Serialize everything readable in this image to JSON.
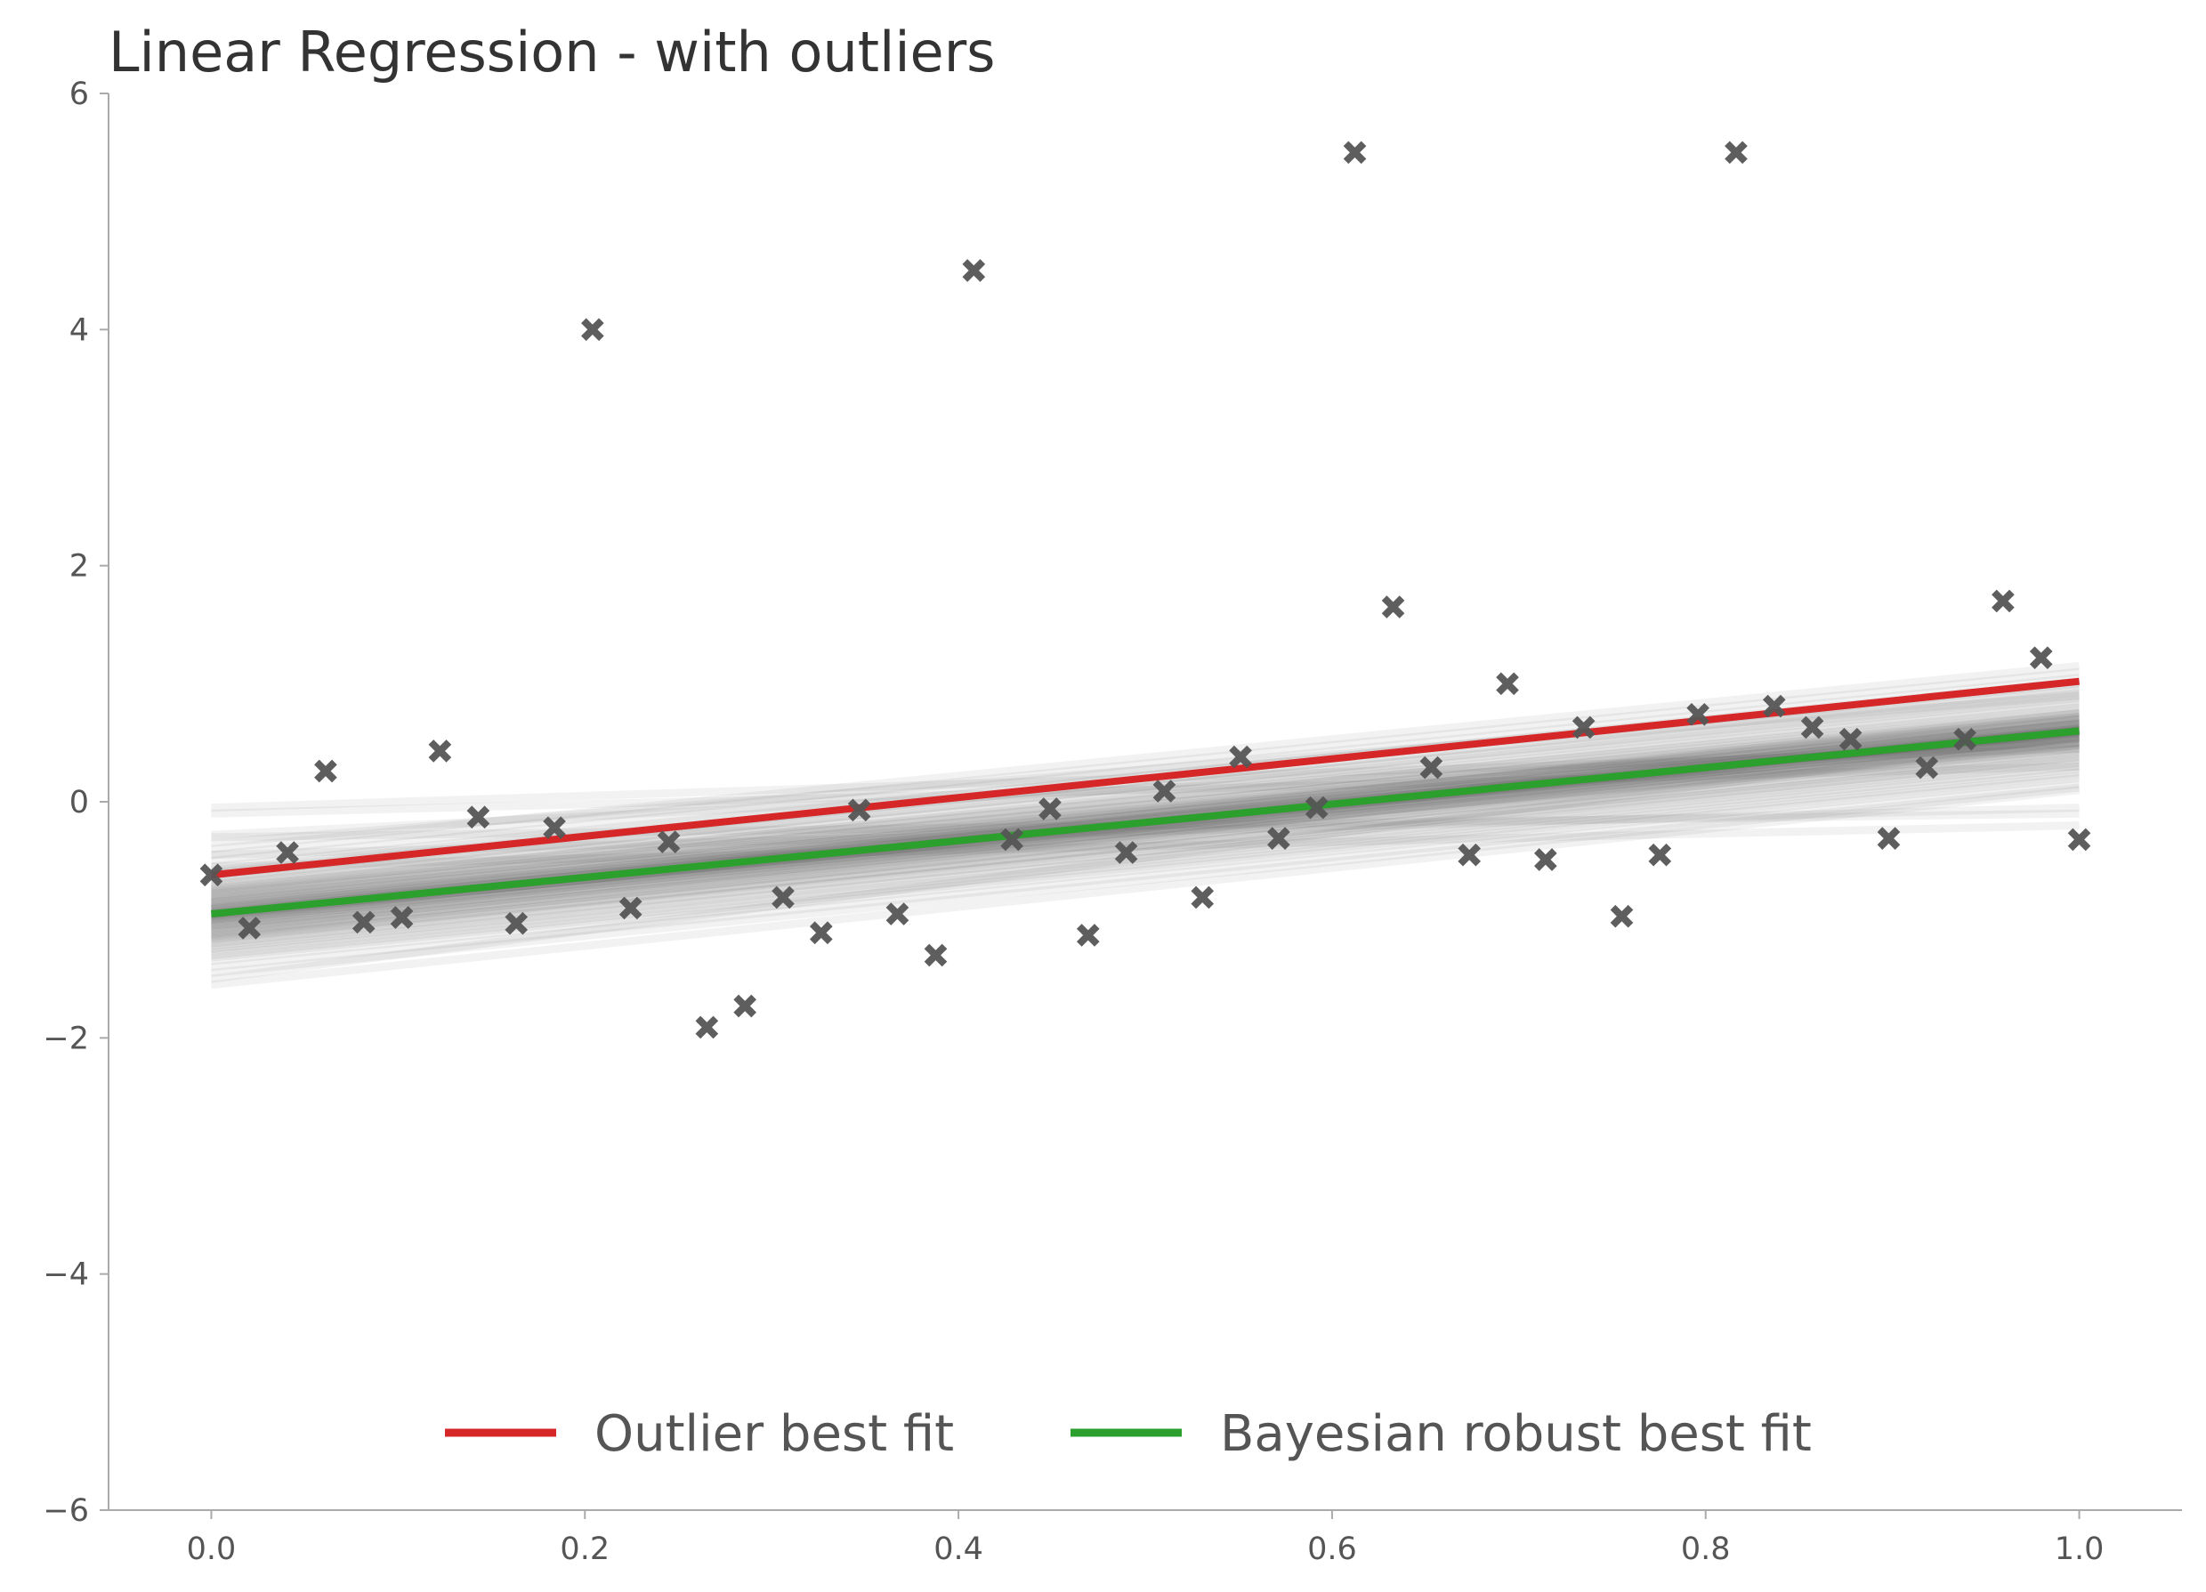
{
  "chart_data": {
    "type": "scatter",
    "title": "Linear Regression - with outliers",
    "xlabel": "",
    "ylabel": "",
    "xlim": [
      -0.055,
      1.055
    ],
    "ylim": [
      -6,
      6
    ],
    "x_ticks": [
      0.0,
      0.2,
      0.4,
      0.6,
      0.8,
      1.0
    ],
    "x_tick_labels": [
      "0.0",
      "0.2",
      "0.4",
      "0.6",
      "0.8",
      "1.0"
    ],
    "y_ticks": [
      -6,
      -4,
      -2,
      0,
      2,
      4,
      6
    ],
    "y_tick_labels": [
      "−6",
      "−4",
      "−2",
      "0",
      "2",
      "4",
      "6"
    ],
    "grid": false,
    "legend_position": "bottom-center",
    "points": {
      "marker": "x",
      "color": "#555555",
      "x": [
        0.0,
        0.0204,
        0.0408,
        0.0612,
        0.0816,
        0.102,
        0.1224,
        0.1429,
        0.1633,
        0.1837,
        0.2041,
        0.2245,
        0.2449,
        0.2653,
        0.2857,
        0.3061,
        0.3265,
        0.3469,
        0.3673,
        0.3878,
        0.4082,
        0.4286,
        0.449,
        0.4694,
        0.4898,
        0.5102,
        0.5306,
        0.551,
        0.5714,
        0.5918,
        0.6122,
        0.6327,
        0.6531,
        0.6735,
        0.6939,
        0.7143,
        0.7347,
        0.7551,
        0.7755,
        0.7959,
        0.8163,
        0.8367,
        0.8571,
        0.8776,
        0.898,
        0.9184,
        0.9388,
        0.9592,
        0.9796,
        1.0
      ],
      "y": [
        -0.62,
        -1.07,
        -0.43,
        0.26,
        -1.02,
        -0.98,
        0.43,
        -0.13,
        -1.03,
        -0.22,
        4.0,
        -0.9,
        -0.34,
        -1.91,
        -1.73,
        -0.81,
        -1.11,
        -0.07,
        -0.95,
        -1.3,
        4.5,
        -0.32,
        -0.06,
        -1.13,
        -0.43,
        0.09,
        -0.81,
        0.38,
        -0.31,
        -0.05,
        5.5,
        1.65,
        0.29,
        -0.45,
        1.0,
        -0.49,
        0.63,
        -0.97,
        -0.45,
        0.74,
        5.5,
        0.81,
        0.63,
        0.53,
        -0.31,
        0.29,
        0.53,
        1.7,
        1.22,
        -0.32
      ]
    },
    "posterior_samples": {
      "color": "#444444",
      "lines": [
        [
          -0.95,
          0.6
        ],
        [
          -0.9,
          0.65
        ],
        [
          -1.0,
          0.55
        ],
        [
          -0.85,
          0.7
        ],
        [
          -1.05,
          0.5
        ],
        [
          -0.8,
          0.75
        ],
        [
          -1.1,
          0.45
        ],
        [
          -0.92,
          0.58
        ],
        [
          -0.98,
          0.62
        ],
        [
          -0.88,
          0.68
        ],
        [
          -1.02,
          0.52
        ],
        [
          -0.75,
          0.8
        ],
        [
          -1.15,
          0.4
        ],
        [
          -0.94,
          0.57
        ],
        [
          -0.96,
          0.63
        ],
        [
          -0.82,
          0.72
        ],
        [
          -1.08,
          0.48
        ],
        [
          -0.7,
          0.85
        ],
        [
          -1.2,
          0.35
        ],
        [
          -0.99,
          0.66
        ],
        [
          -0.91,
          0.54
        ],
        [
          -0.86,
          0.61
        ],
        [
          -1.04,
          0.59
        ],
        [
          -0.78,
          0.66
        ],
        [
          -1.12,
          0.55
        ],
        [
          -0.65,
          0.9
        ],
        [
          -1.25,
          0.3
        ],
        [
          -0.93,
          0.5
        ],
        [
          -0.97,
          0.7
        ],
        [
          -0.84,
          0.64
        ],
        [
          -1.06,
          0.56
        ],
        [
          -0.72,
          0.78
        ],
        [
          -1.18,
          0.42
        ],
        [
          -0.89,
          0.59
        ],
        [
          -1.01,
          0.61
        ],
        [
          -0.6,
          0.95
        ],
        [
          -1.3,
          0.25
        ],
        [
          -0.87,
          0.53
        ],
        [
          -1.03,
          0.67
        ],
        [
          -0.76,
          0.71
        ],
        [
          -1.14,
          0.49
        ],
        [
          -0.68,
          0.88
        ],
        [
          -1.22,
          0.38
        ],
        [
          -0.95,
          0.45
        ],
        [
          -0.95,
          0.75
        ],
        [
          -0.81,
          0.62
        ],
        [
          -1.09,
          0.58
        ],
        [
          -0.74,
          0.83
        ],
        [
          -1.16,
          0.37
        ],
        [
          -0.98,
          0.6
        ],
        [
          -0.55,
          1.0
        ],
        [
          -1.35,
          0.2
        ],
        [
          -0.9,
          0.72
        ],
        [
          -1.0,
          0.48
        ],
        [
          -0.79,
          0.69
        ],
        [
          -1.11,
          0.51
        ],
        [
          -0.66,
          0.92
        ],
        [
          -1.24,
          0.33
        ],
        [
          -0.92,
          0.63
        ],
        [
          -0.97,
          0.57
        ],
        [
          -0.5,
          1.05
        ],
        [
          -1.4,
          0.15
        ],
        [
          -0.85,
          0.58
        ],
        [
          -1.05,
          0.62
        ],
        [
          -0.73,
          0.76
        ],
        [
          -1.17,
          0.44
        ],
        [
          -0.62,
          0.97
        ],
        [
          -1.28,
          0.28
        ],
        [
          -0.94,
          0.66
        ],
        [
          -0.96,
          0.54
        ],
        [
          -0.45,
          1.1
        ],
        [
          -1.45,
          0.12
        ],
        [
          -0.83,
          0.66
        ],
        [
          -1.07,
          0.54
        ],
        [
          -0.77,
          0.73
        ],
        [
          -1.13,
          0.47
        ],
        [
          -0.58,
          1.02
        ],
        [
          -1.32,
          0.22
        ],
        [
          -0.91,
          0.6
        ],
        [
          -0.99,
          0.6
        ],
        [
          -0.4,
          1.15
        ],
        [
          -1.55,
          0.1
        ],
        [
          -0.35,
          0.9
        ],
        [
          -1.5,
          0.55
        ],
        [
          -0.28,
          0.5
        ],
        [
          -0.1,
          0.3
        ],
        [
          -0.05,
          0.45
        ],
        [
          -0.3,
          -0.1
        ],
        [
          -0.45,
          -0.05
        ],
        [
          -0.55,
          -0.2
        ]
      ]
    },
    "series": [
      {
        "name": "Outlier best fit",
        "color": "#d62728",
        "x": [
          0.0,
          1.0
        ],
        "y": [
          -0.62,
          1.02
        ]
      },
      {
        "name": "Bayesian robust best fit",
        "color": "#2ca02c",
        "x": [
          0.0,
          1.0
        ],
        "y": [
          -0.95,
          0.6
        ]
      }
    ]
  }
}
